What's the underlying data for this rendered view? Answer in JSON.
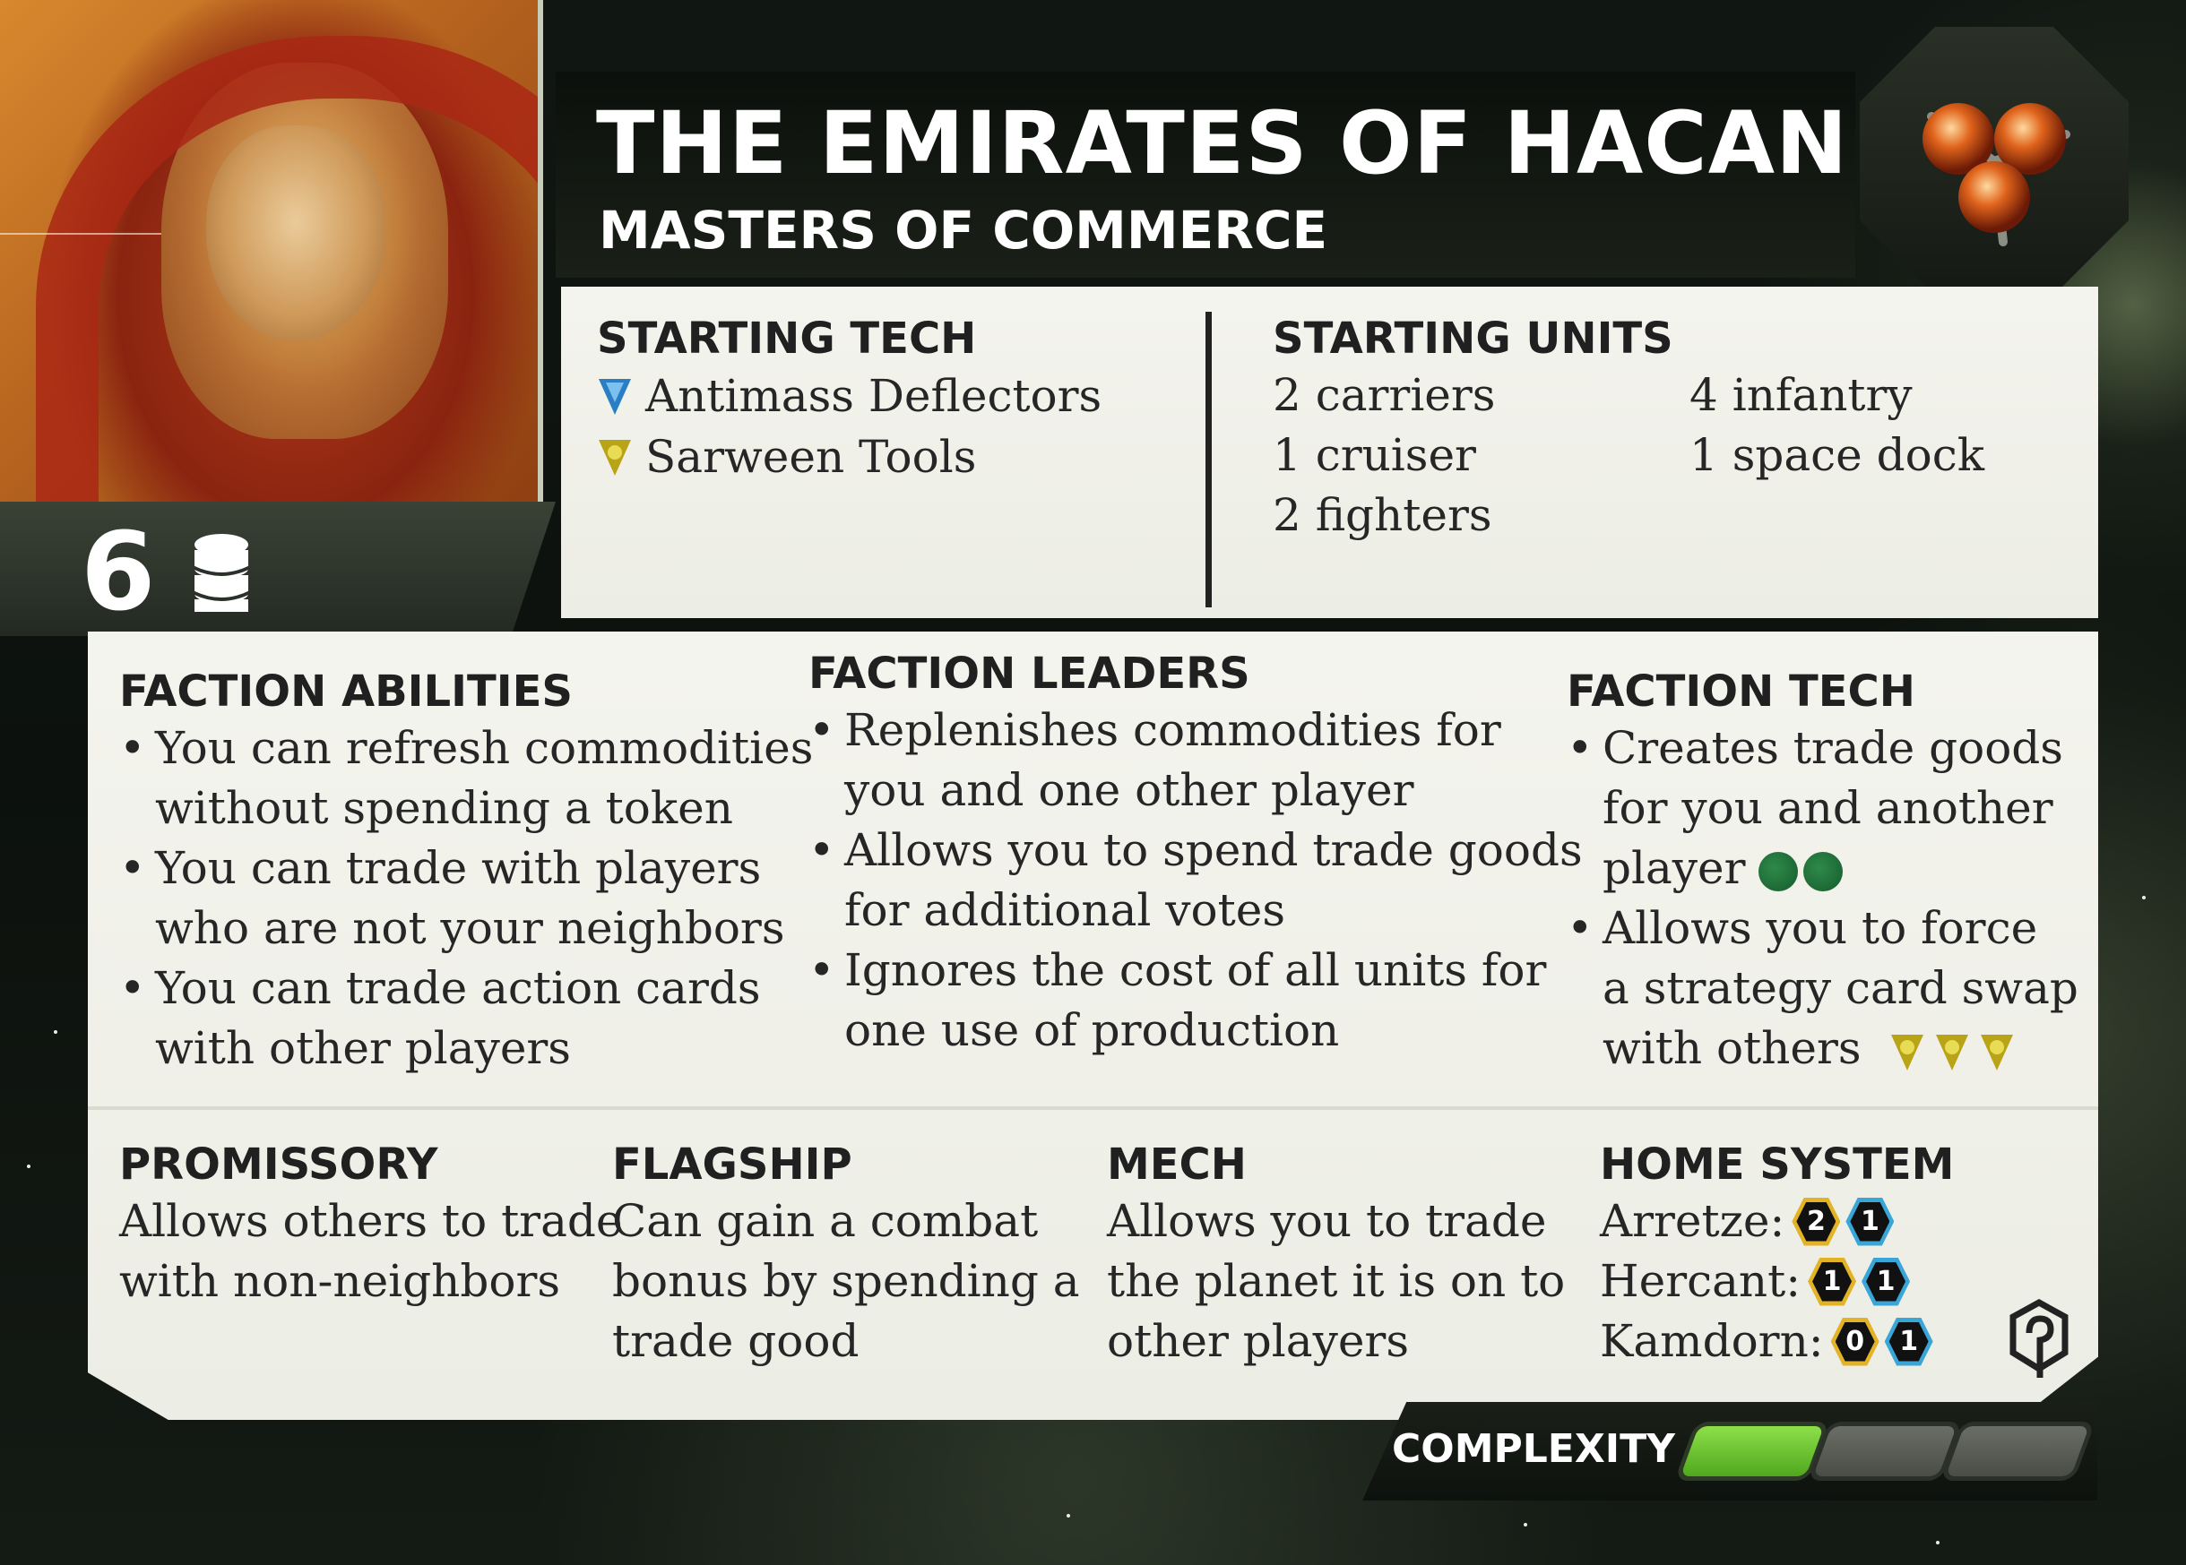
{
  "faction": {
    "name": "THE EMIRATES OF HACAN",
    "subtitle": "MASTERS OF COMMERCE",
    "commodity_count": "6",
    "commodity_icon": "commodity-stack-icon",
    "symbol_icon": "hacan-faction-symbol"
  },
  "starting_tech": {
    "heading": "STARTING TECH",
    "items": [
      {
        "name": "Antimass Deflectors",
        "icon": "propulsion-tech-icon",
        "color": "#2a7fc4"
      },
      {
        "name": "Sarween Tools",
        "icon": "cybernetic-tech-icon",
        "color": "#c9b51e"
      }
    ]
  },
  "starting_units": {
    "heading": "STARTING UNITS",
    "col1": [
      "2 carriers",
      "1 cruiser",
      "2 fighters"
    ],
    "col2": [
      "4 infantry",
      "1 space dock"
    ]
  },
  "faction_abilities": {
    "heading": "FACTION ABILITIES",
    "items": [
      [
        "You can refresh commodities",
        "without spending a token"
      ],
      [
        "You can trade with players",
        "who are not your neighbors"
      ],
      [
        "You can trade action cards",
        "with other players"
      ]
    ]
  },
  "faction_leaders": {
    "heading": "FACTION LEADERS",
    "items": [
      [
        "Replenishes commodities for",
        "you and one other player"
      ],
      [
        "Allows you to spend trade goods",
        "for additional votes"
      ],
      [
        "Ignores the cost of all units for",
        "one use of production"
      ]
    ]
  },
  "faction_tech": {
    "heading": "FACTION TECH",
    "items": [
      [
        "Creates trade goods",
        "for you and another",
        "player"
      ],
      [
        "Allows you to force",
        "a strategy card swap",
        "with others"
      ]
    ],
    "prereq_1": {
      "count": 2,
      "icon": "biotic-tech-icon",
      "color": "#1f7a3a"
    },
    "prereq_2": {
      "count": 3,
      "icon": "cybernetic-tech-icon",
      "color": "#c9b51e"
    }
  },
  "promissory": {
    "heading": "PROMISSORY",
    "lines": [
      "Allows others to trade",
      "with non-neighbors"
    ]
  },
  "flagship": {
    "heading": "FLAGSHIP",
    "lines": [
      "Can gain a combat",
      "bonus by spending a",
      "trade good"
    ]
  },
  "mech": {
    "heading": "MECH",
    "lines": [
      "Allows you to trade",
      "the planet it is on to",
      "other players"
    ]
  },
  "home_system": {
    "heading": "HOME SYSTEM",
    "planets": [
      {
        "name": "Arretze:",
        "resources": "2",
        "influence": "1"
      },
      {
        "name": "Hercant:",
        "resources": "1",
        "influence": "1"
      },
      {
        "name": "Kamdorn:",
        "resources": "0",
        "influence": "1"
      }
    ],
    "icon": "home-system-icon"
  },
  "complexity": {
    "label": "COMPLEXITY",
    "level": 1,
    "max": 3,
    "on_color": "#7fd23c"
  }
}
